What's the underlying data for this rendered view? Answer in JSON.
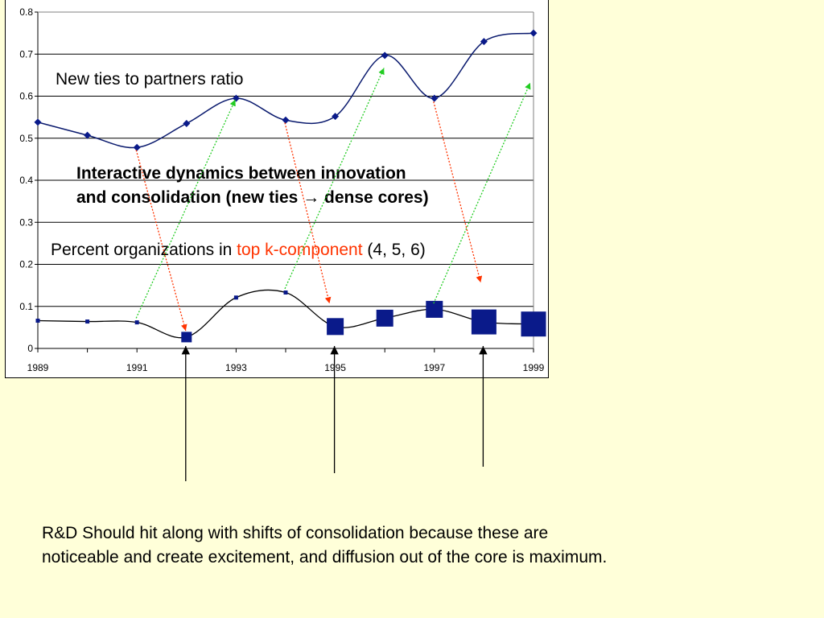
{
  "chart_data": {
    "type": "line",
    "x": [
      1989,
      1990,
      1991,
      1992,
      1993,
      1994,
      1995,
      1996,
      1997,
      1998,
      1999
    ],
    "xticks": [
      "1989",
      "1991",
      "1993",
      "1995",
      "1997",
      "1999"
    ],
    "yticks": [
      "0",
      "0.1",
      "0.2",
      "0.3",
      "0.4",
      "0.5",
      "0.6",
      "0.7",
      "0.8"
    ],
    "ylim": [
      0,
      0.8
    ],
    "xlim": [
      1989,
      1999
    ],
    "grid": "horizontal",
    "series": [
      {
        "name": "New ties to partners ratio",
        "marker": "diamond",
        "values": [
          0.538,
          0.507,
          0.478,
          0.535,
          0.595,
          0.543,
          0.552,
          0.697,
          0.595,
          0.73,
          0.75
        ]
      },
      {
        "name": "Percent organizations in top k-component (4, 5, 6)",
        "marker": "square",
        "values": [
          0.066,
          0.064,
          0.062,
          0.027,
          0.121,
          0.133,
          0.052,
          0.072,
          0.093,
          0.063,
          0.058
        ],
        "marker_level": [
          1,
          1,
          1,
          2,
          1,
          1,
          3,
          3,
          3,
          4,
          4
        ]
      }
    ],
    "colors": {
      "line": "#0a1a6e",
      "marker": "#0a1a8a",
      "line2": "#000000",
      "grid": "#000000"
    },
    "annotations": {
      "series1_label": "New ties to partners ratio",
      "headline_line1": "Interactive dynamics between innovation",
      "headline_line2_a": "and consolidation (new ties ",
      "headline_arrow": "→",
      "headline_line2_b": " dense cores)",
      "series2_label_a": "Percent organizations in ",
      "series2_label_highlight": "top k-component",
      "series2_label_b": " (4, 5, 6)"
    },
    "arrow_colors": {
      "green": "#22cc22",
      "red": "#ff3300",
      "black": "#000000"
    }
  },
  "note": "R&D Should hit along with shifts of consolidation because these are noticeable and create excitement, and diffusion out of the core is maximum."
}
